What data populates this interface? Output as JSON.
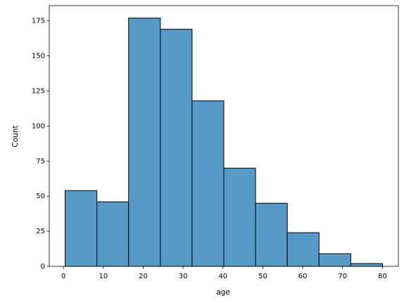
{
  "chart_data": {
    "type": "histogram",
    "xlabel": "age",
    "ylabel": "Count",
    "bins": [
      0.42,
      8.378,
      16.336,
      24.294,
      32.252,
      40.21,
      48.168,
      56.126,
      64.084,
      72.042,
      80
    ],
    "values": [
      54,
      46,
      177,
      169,
      118,
      70,
      45,
      24,
      9,
      2
    ],
    "color": "#5799c7",
    "xlim": [
      -3.559,
      83.979
    ],
    "xticks": [
      0,
      10,
      20,
      30,
      40,
      50,
      60,
      70,
      80
    ],
    "ylim": [
      0,
      185.85
    ],
    "yticks": [
      0,
      25,
      50,
      75,
      100,
      125,
      150,
      175
    ]
  }
}
